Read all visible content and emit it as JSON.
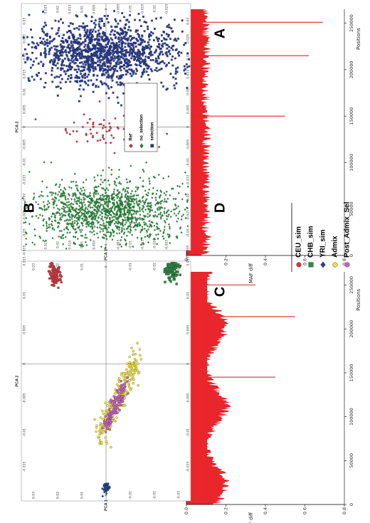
{
  "chart_data": [
    {
      "type": "area",
      "panel_label": "A",
      "xlabel": "Positions",
      "ylabel": "MAF diff",
      "xlim": [
        0,
        265000
      ],
      "ylim": [
        0,
        0.8
      ],
      "xticks": [
        0,
        50000,
        100000,
        150000,
        200000,
        250000
      ],
      "xtick_labels": [
        "0",
        "50000",
        "100000",
        "150000",
        "200000",
        "250000"
      ],
      "yticks": [
        0,
        0.2,
        0.4,
        0.6,
        0.8
      ],
      "ytick_labels": [
        "0.0",
        "0.2",
        "0.4",
        "0.6",
        "0.8"
      ],
      "color": "#e8262b",
      "baseline_level": 0.1,
      "spikes": [
        {
          "x": 150000,
          "y": 0.5
        },
        {
          "x": 215000,
          "y": 0.62
        },
        {
          "x": 251000,
          "y": 0.69
        }
      ]
    },
    {
      "type": "scatter",
      "panel_label": "B",
      "xlabel": "PCA 1",
      "ylabel": "PCA 2",
      "xlim": [
        -0.035,
        0.035
      ],
      "ylim": [
        -0.035,
        0.035
      ],
      "xtick_labels": [
        "-0.035",
        "-0.03",
        "-0.025",
        "-0.02",
        "-0.015",
        "-0.01",
        "-0.005",
        "0",
        "0.005",
        "0.01",
        "0.015",
        "0.02",
        "0.025",
        "0.03"
      ],
      "ytick_labels": [
        "-0.025",
        "-0.02",
        "-0.015",
        "-0.01",
        "-0.005",
        "0",
        "0.005",
        "0.01",
        "0.015",
        "0.02",
        "0.025"
      ],
      "legend": [
        {
          "name": "Ref",
          "color": "#d9363e",
          "marker": "circle"
        },
        {
          "name": "no_selection",
          "color": "#2e8b3e",
          "marker": "diamond"
        },
        {
          "name": "selection",
          "color": "#2a3f8f",
          "marker": "square"
        }
      ],
      "clusters": [
        {
          "name": "no_selection",
          "center": [
            -0.024,
            0.0
          ],
          "spread": [
            0.0045,
            0.016
          ],
          "n": 1400
        },
        {
          "name": "Ref",
          "center": [
            -0.001,
            0.0
          ],
          "spread": [
            0.0022,
            0.012
          ],
          "n": 70
        },
        {
          "name": "selection",
          "center": [
            0.021,
            0.0
          ],
          "spread": [
            0.0045,
            0.016
          ],
          "n": 1400
        }
      ]
    },
    {
      "type": "area",
      "panel_label": "C",
      "xlabel": "Positions",
      "ylabel": "MAF diff",
      "xlim": [
        0,
        265000
      ],
      "ylim": [
        0,
        0.8
      ],
      "xticks": [
        0,
        50000,
        100000,
        150000,
        200000,
        250000
      ],
      "xtick_labels": [
        "0",
        "50000",
        "100000",
        "150000",
        "200000",
        "250000"
      ],
      "yticks": [
        0,
        0.2,
        0.4,
        0.6,
        0.8
      ],
      "ytick_labels": [
        "0.0",
        "0.2",
        "0.4",
        "0.6",
        "0.8"
      ],
      "color": "#e8262b",
      "baseline_level": 0.15,
      "spikes": [
        {
          "x": 145000,
          "y": 0.45
        },
        {
          "x": 214000,
          "y": 0.55
        },
        {
          "x": 250000,
          "y": 0.35
        }
      ]
    },
    {
      "type": "scatter",
      "panel_label": "D",
      "xlabel": "PCA 1",
      "ylabel": "PCA 2",
      "xlim": [
        -0.02,
        0.015
      ],
      "ylim": [
        -0.035,
        0.035
      ],
      "xtick_labels": [
        "-0.015",
        "-0.01",
        "-0.005",
        "0",
        "0.005",
        "0.01",
        "0.015"
      ],
      "ytick_labels": [
        "-0.03",
        "-0.02",
        "-0.01",
        "0",
        "0.01",
        "0.02",
        "0.03"
      ],
      "legend": [
        {
          "name": "CEU_sim",
          "color": "#d9363e",
          "marker": "circle"
        },
        {
          "name": "CHB_sim",
          "color": "#2e8b3e",
          "marker": "square"
        },
        {
          "name": "YRI_sim",
          "color": "#2a3f8f",
          "marker": "diamond"
        },
        {
          "name": "Admix",
          "color": "#f2e33a",
          "marker": "circle"
        },
        {
          "name": "Post_Admix_Sel",
          "color": "#cc5fc6",
          "marker": "circle"
        }
      ],
      "clusters": [
        {
          "name": "CEU_sim",
          "center": [
            0.013,
            0.021
          ],
          "spread": [
            0.0009,
            0.0012
          ],
          "n": 120
        },
        {
          "name": "CHB_sim",
          "center": [
            0.014,
            -0.027
          ],
          "spread": [
            0.0009,
            0.0012
          ],
          "n": 120
        },
        {
          "name": "YRI_sim",
          "center": [
            -0.018,
            0.0
          ],
          "spread": [
            0.0004,
            0.0006
          ],
          "n": 60
        },
        {
          "name": "Admix",
          "center": [
            -0.005,
            -0.005
          ],
          "spread": [
            0.005,
            0.002
          ],
          "n": 260
        },
        {
          "name": "Post_Admix_Sel",
          "center": [
            -0.006,
            -0.004
          ],
          "spread": [
            0.0025,
            0.0015
          ],
          "n": 130
        }
      ]
    }
  ]
}
